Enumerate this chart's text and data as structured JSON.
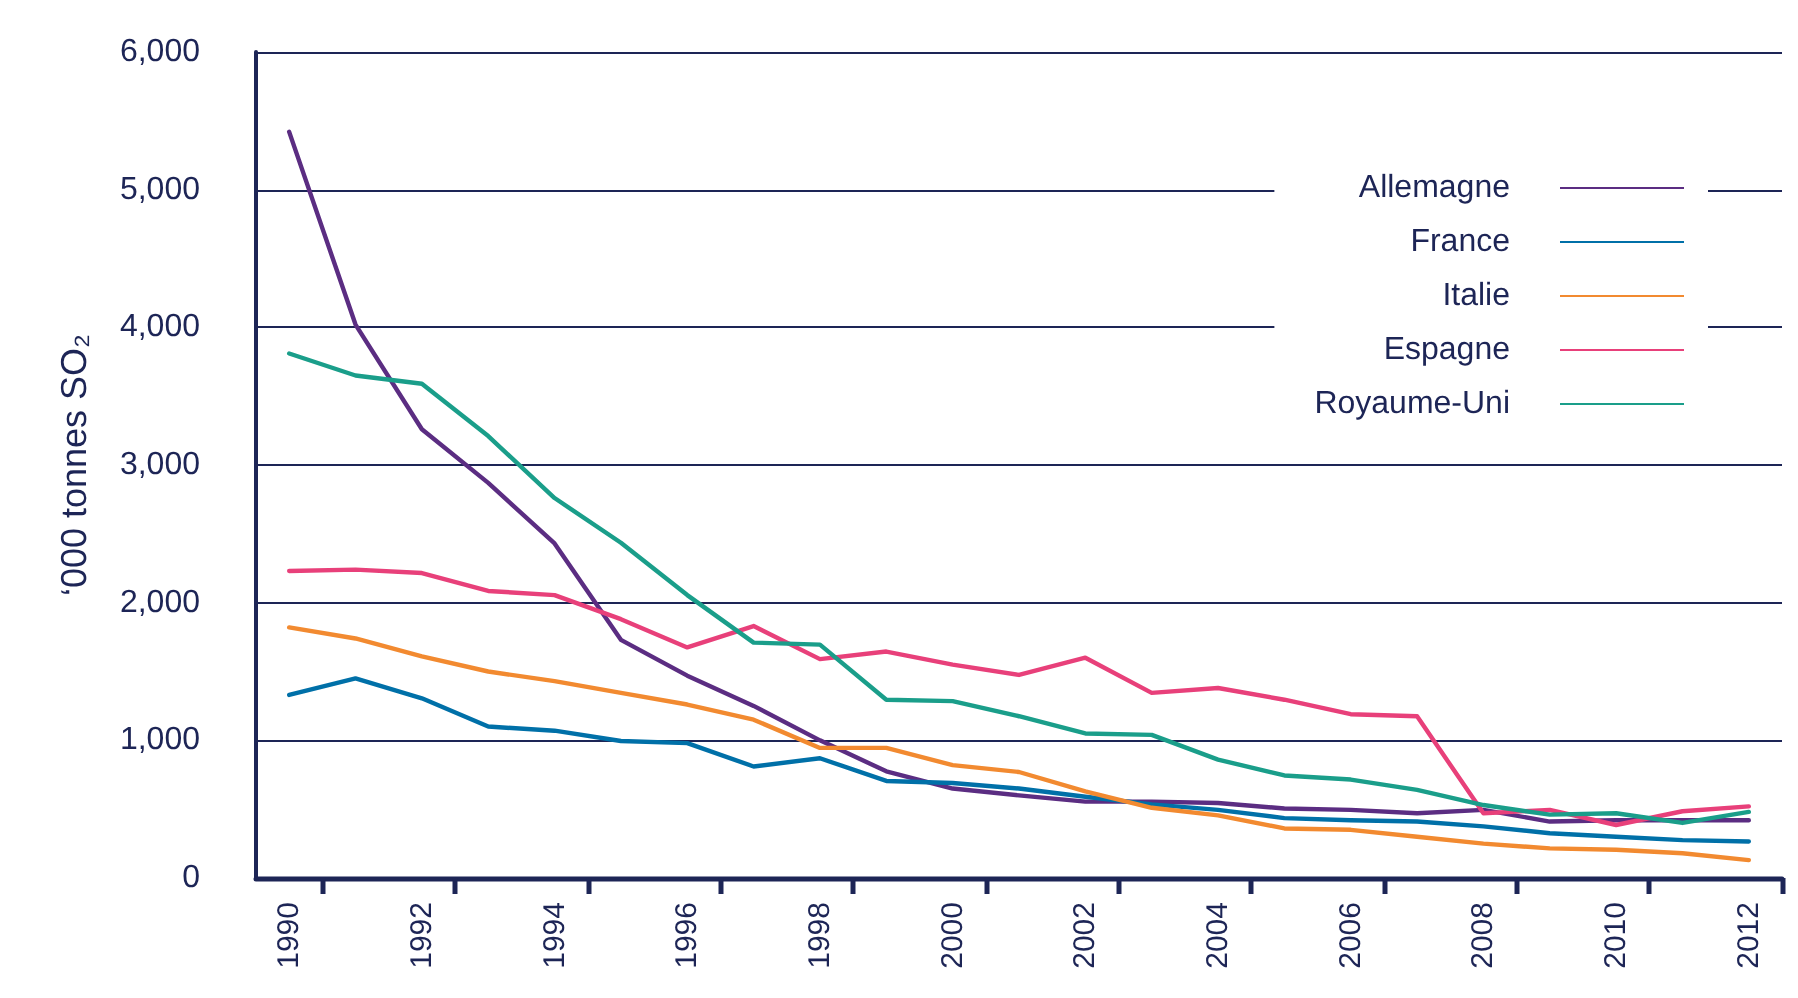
{
  "chart_data": {
    "type": "line",
    "ylabel": "‘000 tonnes SO₂",
    "categories": [
      "1990",
      null,
      "1992",
      null,
      "1994",
      null,
      "1996",
      null,
      "1998",
      null,
      "2000",
      null,
      "2002",
      null,
      "2004",
      null,
      "2006",
      null,
      "2008",
      null,
      "2010",
      null,
      "2012"
    ],
    "ylim": [
      0,
      6000
    ],
    "yticks": [
      {
        "value": 0,
        "label": "0"
      },
      {
        "value": 1000,
        "label": "1,000"
      },
      {
        "value": 2000,
        "label": "2,000"
      },
      {
        "value": 3000,
        "label": "3,000"
      },
      {
        "value": 4000,
        "label": "4,000"
      },
      {
        "value": 5000,
        "label": "5,000"
      },
      {
        "value": 6000,
        "label": "6,000"
      }
    ],
    "grid": "y",
    "legend": "top right",
    "marker": "none",
    "line_style": "solid",
    "series": [
      {
        "name": "Allemagne",
        "color": "#5b2d82",
        "values": [
          5420,
          4020,
          3260,
          2870,
          2430,
          1730,
          1470,
          1250,
          1000,
          775,
          650,
          600,
          555,
          555,
          545,
          505,
          495,
          470,
          495,
          410,
          420,
          420,
          420
        ]
      },
      {
        "name": "France",
        "color": "#0070a8",
        "values": [
          1330,
          1450,
          1305,
          1100,
          1070,
          995,
          980,
          810,
          870,
          705,
          690,
          650,
          590,
          535,
          495,
          435,
          420,
          410,
          375,
          325,
          300,
          275,
          265
        ]
      },
      {
        "name": "Italie",
        "color": "#f28a30",
        "values": [
          1820,
          1740,
          1610,
          1500,
          1430,
          1345,
          1260,
          1150,
          945,
          945,
          820,
          770,
          630,
          510,
          455,
          360,
          350,
          300,
          250,
          215,
          205,
          180,
          130
        ]
      },
      {
        "name": "Espagne",
        "color": "#e8407a",
        "values": [
          2230,
          2240,
          2215,
          2085,
          2055,
          1880,
          1675,
          1830,
          1590,
          1645,
          1550,
          1475,
          1600,
          1345,
          1380,
          1295,
          1190,
          1175,
          470,
          495,
          385,
          485,
          520
        ]
      },
      {
        "name": "Royaume-Uni",
        "color": "#1a9e8a",
        "values": [
          3810,
          3650,
          3590,
          3210,
          2760,
          2435,
          2055,
          1710,
          1695,
          1295,
          1285,
          1175,
          1050,
          1040,
          860,
          745,
          715,
          640,
          530,
          460,
          470,
          400,
          480
        ]
      }
    ]
  }
}
